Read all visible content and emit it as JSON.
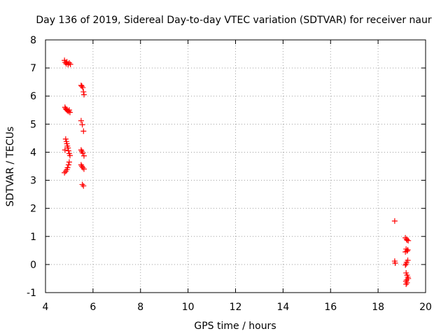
{
  "chart_data": {
    "type": "scatter",
    "title": "Day 136 of 2019, Sidereal Day-to-day VTEC variation (SDTVAR) for receiver naur",
    "xlabel": "GPS time / hours",
    "ylabel": "SDTVAR / TECUs",
    "xlim": [
      4,
      20
    ],
    "ylim": [
      -1,
      8
    ],
    "xticks": [
      "4",
      "6",
      "8",
      "10",
      "12",
      "14",
      "16",
      "18",
      "20"
    ],
    "yticks": [
      "-1",
      "0",
      "1",
      "2",
      "3",
      "4",
      "5",
      "6",
      "7",
      "8"
    ],
    "grid": true,
    "marker": "+",
    "color": "#ff0000",
    "series": [
      {
        "name": "SDTVAR",
        "points": [
          [
            4.8,
            7.27
          ],
          [
            4.83,
            7.2
          ],
          [
            4.87,
            7.15
          ],
          [
            4.9,
            7.22
          ],
          [
            4.95,
            7.12
          ],
          [
            5.0,
            7.18
          ],
          [
            5.05,
            7.13
          ],
          [
            4.82,
            5.6
          ],
          [
            4.85,
            5.55
          ],
          [
            4.88,
            5.52
          ],
          [
            4.92,
            5.48
          ],
          [
            4.97,
            5.45
          ],
          [
            5.0,
            5.5
          ],
          [
            5.03,
            5.42
          ],
          [
            4.85,
            4.47
          ],
          [
            4.88,
            4.38
          ],
          [
            4.9,
            4.3
          ],
          [
            4.92,
            4.22
          ],
          [
            4.95,
            4.15
          ],
          [
            4.82,
            4.08
          ],
          [
            4.97,
            4.05
          ],
          [
            5.0,
            3.95
          ],
          [
            5.03,
            3.88
          ],
          [
            5.0,
            3.65
          ],
          [
            4.97,
            3.55
          ],
          [
            4.93,
            3.45
          ],
          [
            4.9,
            3.38
          ],
          [
            4.85,
            3.32
          ],
          [
            4.8,
            3.27
          ],
          [
            5.5,
            6.38
          ],
          [
            5.53,
            6.35
          ],
          [
            5.57,
            6.3
          ],
          [
            5.6,
            6.15
          ],
          [
            5.62,
            6.05
          ],
          [
            5.5,
            5.12
          ],
          [
            5.55,
            4.98
          ],
          [
            5.6,
            4.75
          ],
          [
            5.5,
            4.08
          ],
          [
            5.53,
            4.03
          ],
          [
            5.57,
            3.97
          ],
          [
            5.62,
            3.87
          ],
          [
            5.5,
            3.55
          ],
          [
            5.53,
            3.5
          ],
          [
            5.57,
            3.45
          ],
          [
            5.62,
            3.4
          ],
          [
            5.55,
            2.85
          ],
          [
            5.6,
            2.8
          ],
          [
            18.7,
            1.55
          ],
          [
            18.7,
            0.12
          ],
          [
            18.72,
            0.05
          ],
          [
            19.15,
            0.95
          ],
          [
            19.2,
            0.9
          ],
          [
            19.22,
            0.87
          ],
          [
            19.27,
            0.85
          ],
          [
            19.18,
            0.55
          ],
          [
            19.22,
            0.48
          ],
          [
            19.25,
            0.52
          ],
          [
            19.15,
            0.45
          ],
          [
            19.25,
            0.15
          ],
          [
            19.2,
            0.08
          ],
          [
            19.18,
            0.02
          ],
          [
            19.15,
            -0.02
          ],
          [
            19.18,
            -0.3
          ],
          [
            19.22,
            -0.38
          ],
          [
            19.25,
            -0.45
          ],
          [
            19.27,
            -0.5
          ],
          [
            19.2,
            -0.55
          ],
          [
            19.17,
            -0.6
          ],
          [
            19.22,
            -0.65
          ],
          [
            19.18,
            -0.7
          ]
        ]
      }
    ]
  }
}
